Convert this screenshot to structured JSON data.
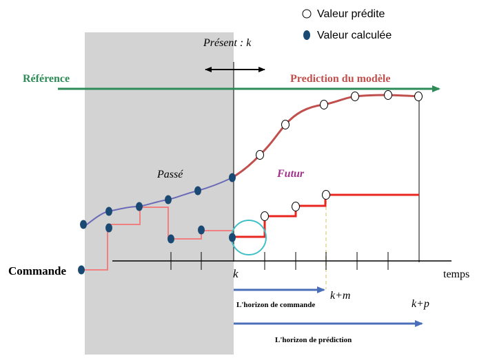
{
  "legend": {
    "predicted": {
      "label": "Valeur prédite",
      "marker": "open-circle-icon"
    },
    "computed": {
      "label": "Valeur calculée",
      "marker": "filled-circle-icon"
    }
  },
  "labels": {
    "present": "Présent : k",
    "reference": "Référence",
    "model_prediction": "Prediction du modèle",
    "past": "Passé",
    "future": "Futur",
    "command": "Commande",
    "time": "temps",
    "k": "k",
    "k_plus_m": "k+m",
    "k_plus_p": "k+p",
    "control_horizon": "L'horizon de commande",
    "prediction_horizon": "L'horizon de prédiction"
  },
  "colors": {
    "past_region": "#d3d3d3",
    "reference": "#2e8b57",
    "predicted_output": "#c0504d",
    "past_output": "#6a6ab8",
    "command": "#f08080",
    "future_command": "#e8261f",
    "point_fill": "#1a4a73",
    "horizon_arrow": "#4a6fb8",
    "highlight_circle": "#40c0c8",
    "future_label": "#a0308a",
    "reference_label": "#2e8b57",
    "prediction_label": "#c0504d"
  }
}
